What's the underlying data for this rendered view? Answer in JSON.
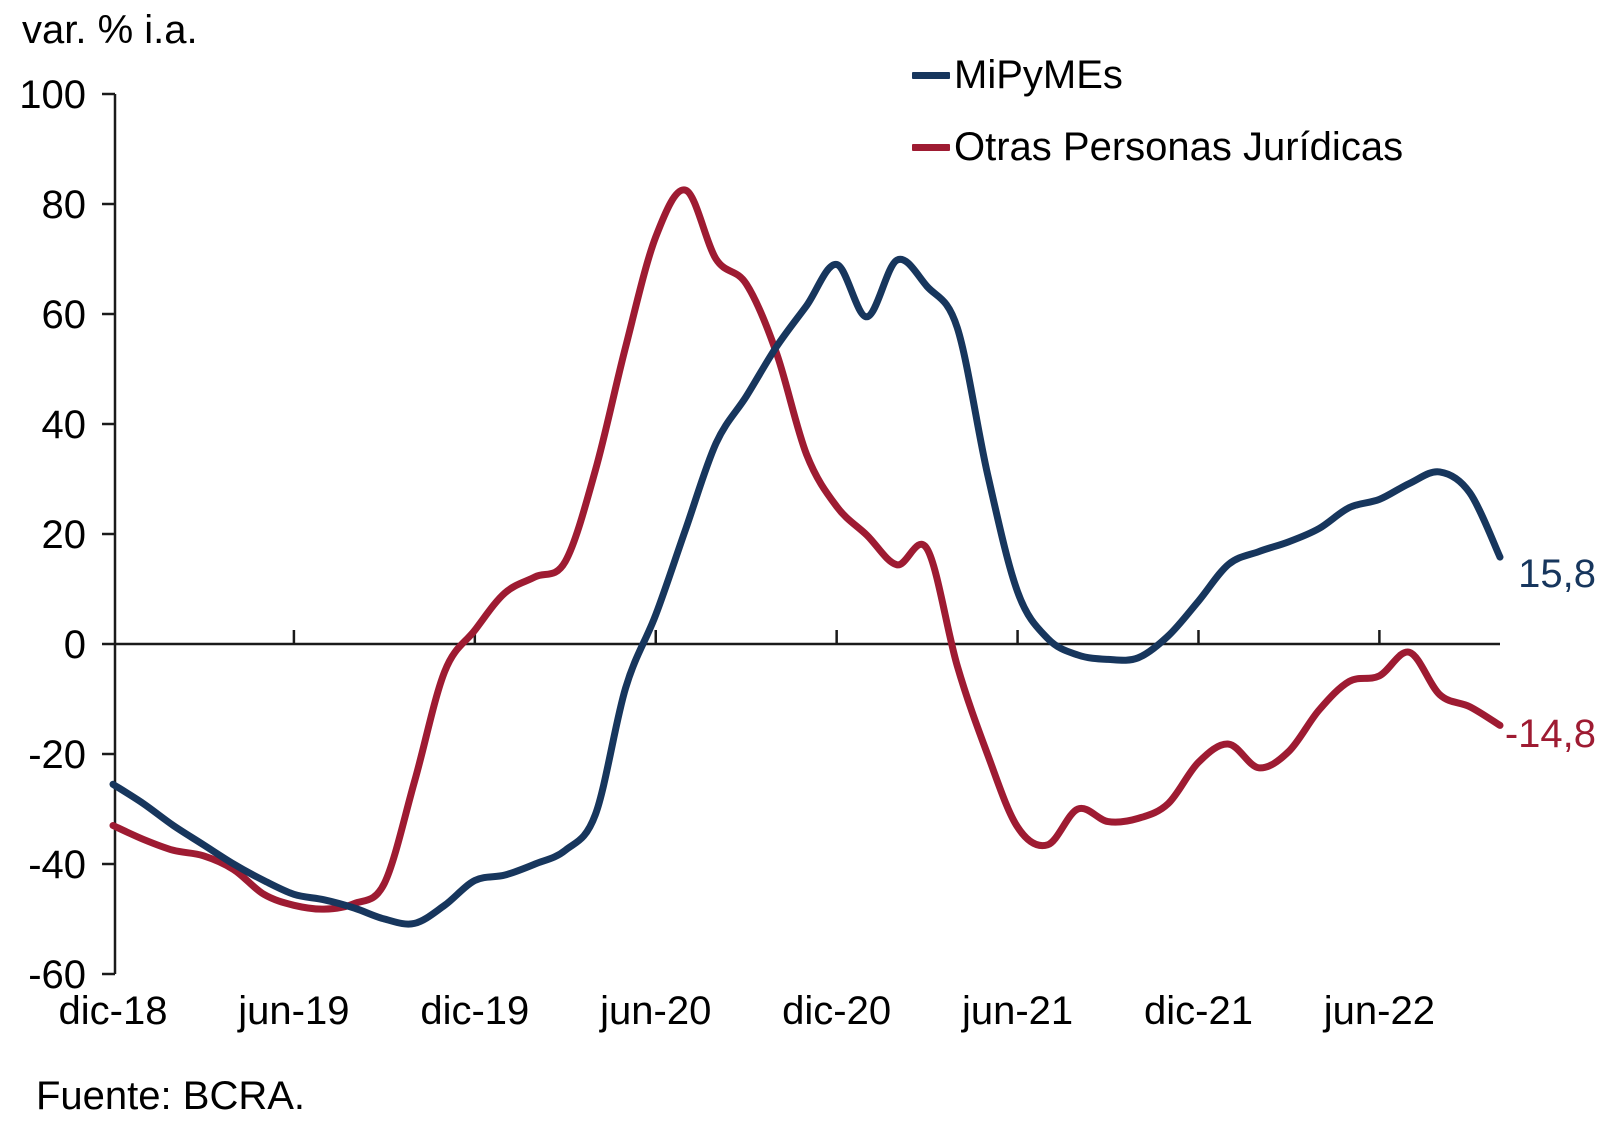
{
  "title": "var. % i.a.",
  "source": "Fuente: BCRA.",
  "colors": {
    "mipymes": "#17365d",
    "otras_pj": "#9e1b32",
    "axis": "#1a1a1a",
    "text": "#000000",
    "background": "#ffffff"
  },
  "legend": {
    "items": [
      {
        "label": "MiPyMEs",
        "color": "#17365d"
      },
      {
        "label": "Otras Personas Jurídicas",
        "color": "#9e1b32"
      }
    ]
  },
  "end_labels": {
    "mipymes": {
      "text": "15,8",
      "color": "#17365d"
    },
    "otras_pj": {
      "text": "-14,8",
      "color": "#9e1b32"
    }
  },
  "chart_data": {
    "type": "line",
    "title": "var. % i.a.",
    "x": [
      "dic-18",
      "ene-19",
      "feb-19",
      "mar-19",
      "abr-19",
      "may-19",
      "jun-19",
      "jul-19",
      "ago-19",
      "sep-19",
      "oct-19",
      "nov-19",
      "dic-19",
      "ene-20",
      "feb-20",
      "mar-20",
      "abr-20",
      "may-20",
      "jun-20",
      "jul-20",
      "ago-20",
      "sep-20",
      "oct-20",
      "nov-20",
      "dic-20",
      "ene-21",
      "feb-21",
      "mar-21",
      "abr-21",
      "may-21",
      "jun-21",
      "jul-21",
      "ago-21",
      "sep-21",
      "oct-21",
      "nov-21",
      "dic-21",
      "ene-22",
      "feb-22",
      "mar-22",
      "abr-22",
      "may-22",
      "jun-22",
      "jul-22",
      "ago-22",
      "sep-22",
      "oct-22"
    ],
    "xtick_labels": [
      "dic-18",
      "jun-19",
      "dic-19",
      "jun-20",
      "dic-20",
      "jun-21",
      "dic-21",
      "jun-22"
    ],
    "ylim": [
      -60,
      100
    ],
    "ytick_step": 20,
    "grid": false,
    "legend_position": "top-right",
    "series": [
      {
        "name": "MiPyMEs",
        "color": "#17365d",
        "values": [
          -25.5,
          -29,
          -33,
          -36.5,
          -40,
          -43,
          -45.5,
          -46.5,
          -48,
          -50,
          -50.8,
          -47.5,
          -43,
          -42,
          -40,
          -37.5,
          -31,
          -8,
          5.3,
          21,
          36.5,
          45,
          54,
          61.5,
          69,
          59.5,
          69.8,
          65,
          57.5,
          31,
          9.5,
          1,
          -2,
          -2.8,
          -2.5,
          1.5,
          7.8,
          14.5,
          16.8,
          18.6,
          21,
          24.8,
          26.3,
          29.2,
          31.3,
          27.5,
          15.8
        ]
      },
      {
        "name": "Otras Personas Jurídicas",
        "color": "#9e1b32",
        "values": [
          -33,
          -35.5,
          -37.5,
          -38.5,
          -41,
          -45.5,
          -47.5,
          -48.2,
          -47.2,
          -43.5,
          -25,
          -5,
          2.5,
          9.3,
          12.2,
          15,
          31.6,
          54,
          74,
          82.5,
          70,
          65.5,
          53,
          34.5,
          25,
          19.8,
          14.4,
          17.3,
          -4,
          -20,
          -33.3,
          -36.5,
          -30,
          -32.3,
          -31.7,
          -29,
          -21.5,
          -18.2,
          -22.5,
          -19.5,
          -12,
          -6.8,
          -5.8,
          -1.5,
          -9.2,
          -11.4,
          -14.8
        ]
      }
    ],
    "end_value_labels": [
      "15,8",
      "-14,8"
    ]
  }
}
